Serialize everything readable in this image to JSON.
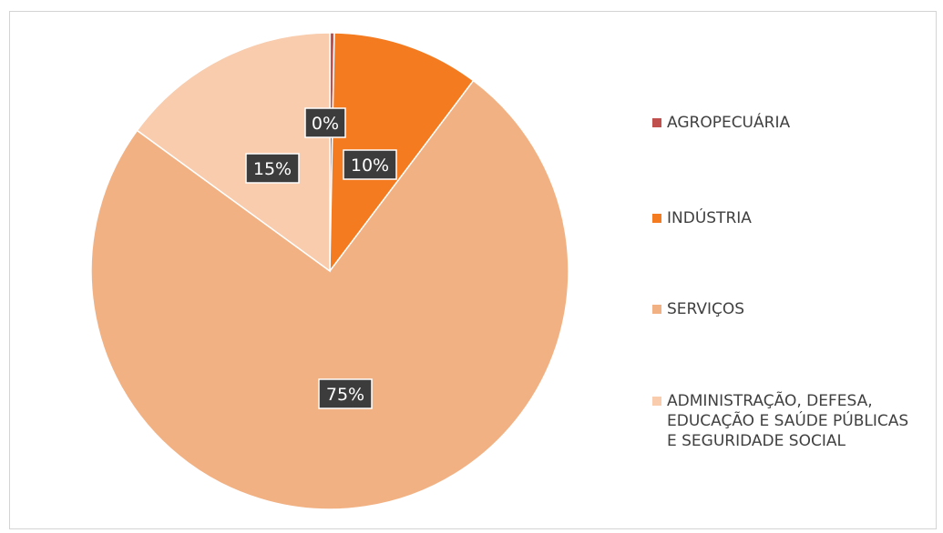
{
  "chart_data": {
    "type": "pie",
    "start_angle_deg": 0,
    "direction": "clockwise",
    "legend_position": "right",
    "slices": [
      {
        "name": "AGROPECUÁRIA",
        "value": 0.3,
        "label": "0%",
        "color": "#c0504d"
      },
      {
        "name": "INDÚSTRIA",
        "value": 10,
        "label": "10%",
        "color": "#f47b20"
      },
      {
        "name": "SERVIÇOS",
        "value": 75,
        "label": "75%",
        "color": "#f2b183"
      },
      {
        "name": "ADMINISTRAÇÃO, DEFESA, EDUCAÇÃO E SAÚDE PÚBLICAS E SEGURIDADE SOCIAL",
        "value": 15,
        "label": "15%",
        "color": "#f8ccad"
      }
    ]
  },
  "legend": {
    "items": [
      {
        "label": "AGROPECUÁRIA",
        "color": "#c0504d"
      },
      {
        "label": "INDÚSTRIA",
        "color": "#f47b20"
      },
      {
        "label": "SERVIÇOS",
        "color": "#f2b183"
      },
      {
        "label": "ADMINISTRAÇÃO, DEFESA, EDUCAÇÃO E SAÚDE PÚBLICAS E SEGURIDADE SOCIAL",
        "color": "#f8ccad"
      }
    ]
  }
}
